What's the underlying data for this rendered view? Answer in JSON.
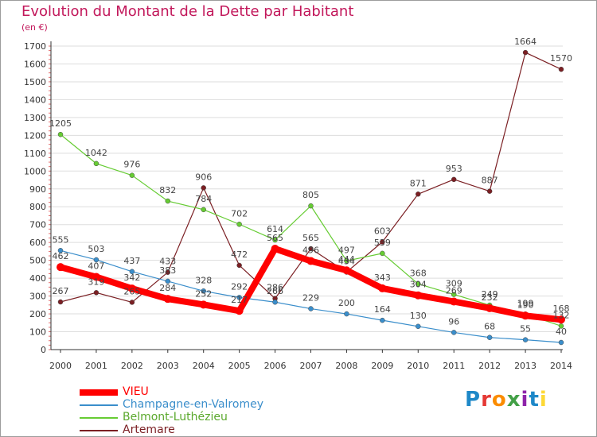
{
  "chart_data": {
    "type": "line",
    "title": "Evolution du Montant de la Dette par Habitant",
    "subtitle": "(en €)",
    "x": [
      2000,
      2001,
      2002,
      2003,
      2004,
      2005,
      2006,
      2007,
      2008,
      2009,
      2010,
      2011,
      2012,
      2013,
      2014
    ],
    "ylim": [
      0,
      1700
    ],
    "yticks": [
      0,
      100,
      200,
      300,
      400,
      500,
      600,
      700,
      800,
      900,
      1000,
      1100,
      1200,
      1300,
      1400,
      1500,
      1600,
      1700
    ],
    "grid": "horizontal",
    "legend_position": "bottom-left",
    "series": [
      {
        "name": "VIEU",
        "color": "#ff0000",
        "values": [
          462,
          407,
          342,
          284,
          252,
          217,
          565,
          496,
          444,
          343,
          304,
          269,
          232,
          190,
          168
        ]
      },
      {
        "name": "Champagne-en-Valromey",
        "color": "#3a8ecb",
        "values": [
          555,
          503,
          437,
          383,
          328,
          292,
          266,
          229,
          200,
          164,
          130,
          96,
          68,
          55,
          40
        ]
      },
      {
        "name": "Belmont-Luthézieu",
        "color": "#66cc33",
        "values": [
          1205,
          1042,
          976,
          832,
          784,
          702,
          614,
          805,
          497,
          539,
          368,
          309,
          249,
          199,
          132
        ]
      },
      {
        "name": "Artemare",
        "color": "#7b1f23",
        "values": [
          267,
          319,
          265,
          433,
          906,
          472,
          286,
          565,
          434,
          603,
          871,
          953,
          887,
          1664,
          1570
        ]
      }
    ]
  },
  "logo": {
    "text": "Proxiti"
  }
}
